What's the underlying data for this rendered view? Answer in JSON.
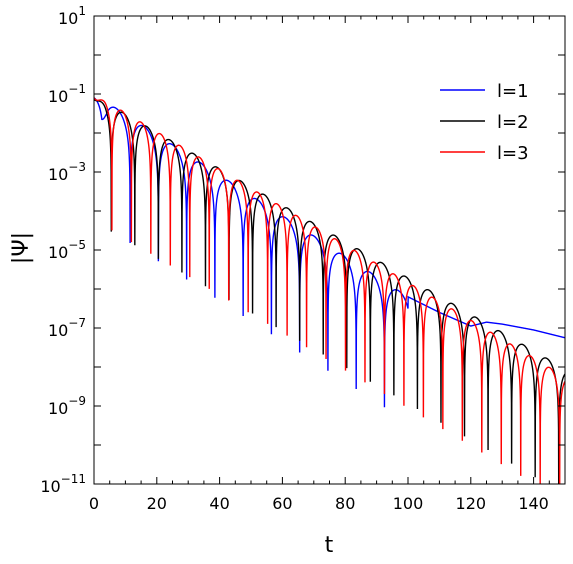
{
  "chart_data": {
    "type": "line",
    "xlabel": "t",
    "ylabel": "|Ψ|",
    "xlim": [
      0,
      150
    ],
    "ylim_log10": [
      -11,
      1
    ],
    "yscale": "log",
    "grid": false,
    "legend_position": "top-right",
    "x_ticks": [
      {
        "value": 0,
        "label": "0"
      },
      {
        "value": 20,
        "label": "20"
      },
      {
        "value": 40,
        "label": "40"
      },
      {
        "value": 60,
        "label": "60"
      },
      {
        "value": 80,
        "label": "80"
      },
      {
        "value": 100,
        "label": "100"
      },
      {
        "value": 120,
        "label": "120"
      },
      {
        "value": 140,
        "label": "140"
      }
    ],
    "y_ticks": [
      {
        "exp": 1,
        "base": "10",
        "sup": "1"
      },
      {
        "exp": -1,
        "base": "10",
        "sup": "−1"
      },
      {
        "exp": -3,
        "base": "10",
        "sup": "−3"
      },
      {
        "exp": -5,
        "base": "10",
        "sup": "−5"
      },
      {
        "exp": -7,
        "base": "10",
        "sup": "−7"
      },
      {
        "exp": -9,
        "base": "10",
        "sup": "−9"
      },
      {
        "exp": -11,
        "base": "10",
        "sup": "−11"
      }
    ],
    "series": [
      {
        "name": "l=1",
        "color": "#0000ff",
        "start_log10": -1.0,
        "end_t": 100,
        "end_log10": -6.2,
        "period": 9.0,
        "phase": 6.5,
        "tail": [
          [
            100,
            -6.2
          ],
          [
            110,
            -6.6
          ],
          [
            120,
            -6.95
          ],
          [
            125,
            -6.85
          ],
          [
            130,
            -6.9
          ],
          [
            140,
            -7.05
          ],
          [
            150,
            -7.25
          ]
        ]
      },
      {
        "name": "l=2",
        "color": "#000000",
        "start_log10": -1.05,
        "end_t": 150,
        "end_log10": -8.05,
        "period": 7.5,
        "phase": 2.0
      },
      {
        "name": "l=3",
        "color": "#ff0000",
        "start_log10": -1.0,
        "end_t": 150,
        "end_log10": -8.25,
        "period": 6.2,
        "phase": 0.5
      }
    ]
  }
}
